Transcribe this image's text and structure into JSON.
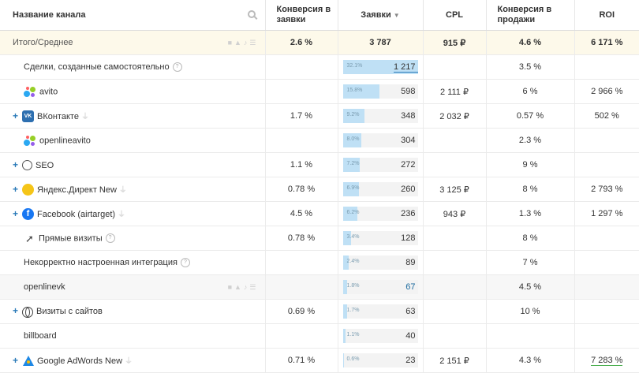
{
  "header": {
    "name": "Название канала",
    "conv_requests": "Конверсия в заявки",
    "requests": "Заявки",
    "sort_arrow": "▼",
    "cpl": "CPL",
    "conv_sales": "Конверсия в продажи",
    "roi": "ROI"
  },
  "total": {
    "label": "Итого/Среднее",
    "conv": "2.6 %",
    "requests": "3 787",
    "cpl": "915 ₽",
    "conv_sales": "4.6 %",
    "roi": "6 171 %"
  },
  "rows": [
    {
      "name": "Сделки, созданные самостоятельно",
      "conv": "",
      "pct": "32.1%",
      "requests": "1 217",
      "cpl": "",
      "conv_sales": "3.5 %",
      "roi": ""
    },
    {
      "name": "avito",
      "conv": "",
      "pct": "15.8%",
      "requests": "598",
      "cpl": "2 111 ₽",
      "conv_sales": "6 %",
      "roi": "2 966 %"
    },
    {
      "name": "ВКонтакте",
      "conv": "1.7 %",
      "pct": "9.2%",
      "requests": "348",
      "cpl": "2 032 ₽",
      "conv_sales": "0.57 %",
      "roi": "502 %"
    },
    {
      "name": "openlineavito",
      "conv": "",
      "pct": "8.0%",
      "requests": "304",
      "cpl": "",
      "conv_sales": "2.3 %",
      "roi": ""
    },
    {
      "name": "SEO",
      "conv": "1.1 %",
      "pct": "7.2%",
      "requests": "272",
      "cpl": "",
      "conv_sales": "9 %",
      "roi": ""
    },
    {
      "name": "Яндекс.Директ New",
      "conv": "0.78 %",
      "pct": "6.9%",
      "requests": "260",
      "cpl": "3 125 ₽",
      "conv_sales": "8 %",
      "roi": "2 793 %"
    },
    {
      "name": "Facebook (airtarget)",
      "conv": "4.5 %",
      "pct": "6.2%",
      "requests": "236",
      "cpl": "943 ₽",
      "conv_sales": "1.3 %",
      "roi": "1 297 %"
    },
    {
      "name": "Прямые визиты",
      "conv": "0.78 %",
      "pct": "3.4%",
      "requests": "128",
      "cpl": "",
      "conv_sales": "8 %",
      "roi": ""
    },
    {
      "name": "Некорректно настроенная интеграция",
      "conv": "",
      "pct": "2.4%",
      "requests": "89",
      "cpl": "",
      "conv_sales": "7 %",
      "roi": ""
    },
    {
      "name": "openlinevk",
      "conv": "",
      "pct": "1.8%",
      "requests": "67",
      "cpl": "",
      "conv_sales": "4.5 %",
      "roi": ""
    },
    {
      "name": "Визиты с сайтов",
      "conv": "0.69 %",
      "pct": "1.7%",
      "requests": "63",
      "cpl": "",
      "conv_sales": "10 %",
      "roi": ""
    },
    {
      "name": "billboard",
      "conv": "",
      "pct": "1.1%",
      "requests": "40",
      "cpl": "",
      "conv_sales": "",
      "roi": ""
    },
    {
      "name": "Google AdWords New",
      "conv": "0.71 %",
      "pct": "0.6%",
      "requests": "23",
      "cpl": "2 151 ₽",
      "conv_sales": "4.3 %",
      "roi": "7 283 %"
    }
  ],
  "colors": {
    "bar_fill": "#bfe0f5",
    "link_blue": "#2a7ab8",
    "total_bg": "#fdf9ea"
  }
}
